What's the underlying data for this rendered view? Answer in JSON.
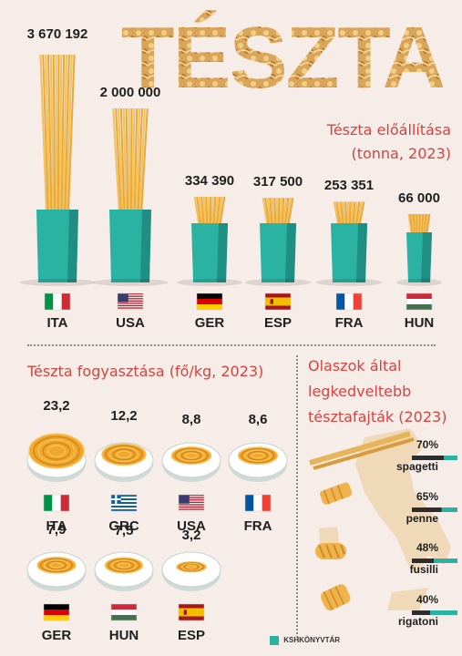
{
  "title": "TÉSZTA",
  "colors": {
    "accent": "#d8433e",
    "teal": "#2ab3a3",
    "bg": "#f6ece8",
    "pasta": "#f0a72a"
  },
  "production": {
    "title_line1": "Tészta előállítása",
    "title_line2": "(tonna, 2023)",
    "chart_data": {
      "type": "bar",
      "categories": [
        "ITA",
        "USA",
        "GER",
        "ESP",
        "FRA",
        "HUN"
      ],
      "values": [
        3670192,
        2000000,
        334390,
        317500,
        253351,
        66000
      ],
      "labels": [
        "3 670 192",
        "2 000 000",
        "334 390",
        "317 500",
        "253 351",
        "66 000"
      ]
    }
  },
  "consumption": {
    "title": "Tészta fogyasztása (fő/kg, 2023)",
    "chart_data": {
      "type": "bar",
      "categories": [
        "ITA",
        "GRC",
        "USA",
        "FRA",
        "GER",
        "HUN",
        "ESP"
      ],
      "values": [
        23.2,
        12.2,
        8.8,
        8.6,
        7.9,
        7.5,
        3.2
      ],
      "labels": [
        "23,2",
        "12,2",
        "8,8",
        "8,6",
        "7,9",
        "7,5",
        "3,2"
      ]
    }
  },
  "favorites": {
    "title_line1": "Olaszok által",
    "title_line2": "legkedveltebb",
    "title_line3": "tésztafajták (2023)",
    "chart_data": {
      "type": "bar",
      "categories": [
        "spagetti",
        "penne",
        "fusilli",
        "rigatoni"
      ],
      "values": [
        70,
        65,
        48,
        40
      ],
      "labels": [
        "70%",
        "65%",
        "48%",
        "40%"
      ]
    }
  },
  "footer": {
    "logo_text": "KSHKÖNYVTÁR"
  }
}
